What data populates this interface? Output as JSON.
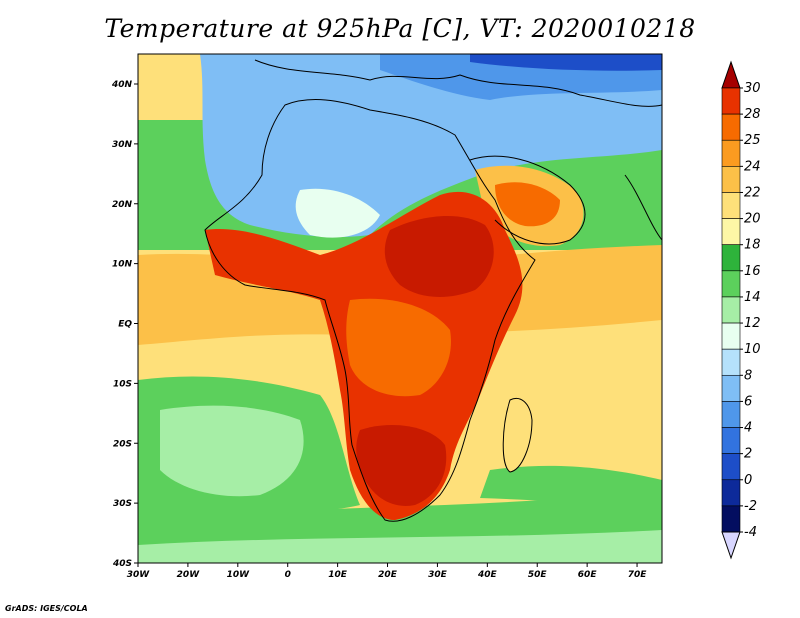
{
  "title": "Temperature at 925hPa [C], VT: 2020010218",
  "credit": "GrADS: IGES/COLA",
  "axes": {
    "lon_labels": [
      "30W",
      "20W",
      "10W",
      "0",
      "10E",
      "20E",
      "30E",
      "40E",
      "50E",
      "60E",
      "70E"
    ],
    "lat_labels": [
      "40N",
      "30N",
      "20N",
      "10N",
      "EQ",
      "10S",
      "20S",
      "30S",
      "40S"
    ]
  },
  "colorbar": {
    "labels": [
      "30",
      "28",
      "25",
      "24",
      "22",
      "20",
      "18",
      "16",
      "14",
      "12",
      "10",
      "8",
      "6",
      "4",
      "2",
      "0",
      "-2",
      "-4"
    ],
    "colors": [
      "#a50000",
      "#e83200",
      "#f76b00",
      "#fb9b20",
      "#fcc048",
      "#fee07a",
      "#fdf7a6",
      "#2eb33b",
      "#5cd05c",
      "#a6eea6",
      "#e8fff0",
      "#b5e1fb",
      "#7fbef5",
      "#4f97ea",
      "#3273df",
      "#1d4ec8",
      "#0d2a9a",
      "#030e60",
      "#d8d6ff"
    ]
  },
  "field_colors": {
    "ocean_cool": "#5cd05c",
    "ocean_mild": "#fee07a",
    "ocean_warm": "#fcc048",
    "north_cold": "#7fbef5",
    "land_hot": "#e83200",
    "land_hottest": "#c81a00"
  }
}
